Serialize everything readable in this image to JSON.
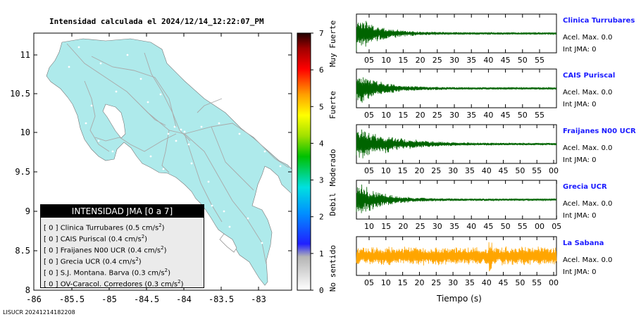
{
  "map": {
    "title": "Intensidad calculada el 2024/12/14_12:22:07_PM",
    "x_ticks": [
      "-86",
      "-85.5",
      "-85",
      "-84.5",
      "-84",
      "-83.5",
      "-83"
    ],
    "y_ticks": [
      "8",
      "8.5",
      "9",
      "9.5",
      "10",
      "10.5",
      "11"
    ],
    "land_color": "#aeeaeb",
    "road_color": "#a9a9a9"
  },
  "colorbar": {
    "ticks": [
      "0",
      "1",
      "2",
      "3",
      "4",
      "5",
      "6",
      "7"
    ],
    "categories": [
      "No sentido",
      "Debil",
      "Moderado",
      "Fuerte",
      "Muy Fuerte"
    ]
  },
  "legend": {
    "header": "INTENSIDAD JMA [0 a 7]",
    "rows": [
      {
        "level": "[ 0 ]",
        "text": "Clinica Turrubares (0.5 cm/s",
        "exp": "2",
        "close": ")"
      },
      {
        "level": "[ 0 ]",
        "text": "CAIS Puriscal (0.4 cm/s",
        "exp": "2",
        "close": ")"
      },
      {
        "level": "[ 0 ]",
        "text": "Fraijanes N00 UCR (0.4 cm/s",
        "exp": "2",
        "close": ")"
      },
      {
        "level": "[ 0 ]",
        "text": "Grecia UCR (0.4 cm/s",
        "exp": "2",
        "close": ")"
      },
      {
        "level": "[ 0 ]",
        "text": "S.J. Montana. Barva (0.3 cm/s",
        "exp": "2",
        "close": ")"
      },
      {
        "level": "[ 0 ]",
        "text": "OV-Caracol. Corredores (0.3 cm/s",
        "exp": "2",
        "close": ")"
      }
    ]
  },
  "footer": "LISUCR 20241214182208",
  "stations": [
    {
      "name": "Clinica Turrubares",
      "acel": "Acel. Max. 0.0",
      "int": "Int JMA: 0",
      "color": "#006400",
      "ticks": [
        "05",
        "10",
        "15",
        "20",
        "25",
        "30",
        "35",
        "40",
        "45",
        "50",
        "55"
      ]
    },
    {
      "name": "CAIS Puriscal",
      "acel": "Acel. Max. 0.0",
      "int": "Int JMA: 0",
      "color": "#006400",
      "ticks": [
        "05",
        "10",
        "15",
        "20",
        "25",
        "30",
        "35",
        "40",
        "45",
        "50",
        "55"
      ]
    },
    {
      "name": "Fraijanes N00 UCR",
      "acel": "Acel. Max. 0.0",
      "int": "Int JMA: 0",
      "color": "#006400",
      "ticks": [
        "05",
        "10",
        "15",
        "20",
        "25",
        "30",
        "35",
        "40",
        "45",
        "50",
        "55",
        "00"
      ]
    },
    {
      "name": "Grecia UCR",
      "acel": "Acel. Max. 0.0",
      "int": "Int JMA: 0",
      "color": "#006400",
      "ticks": [
        "10",
        "15",
        "20",
        "25",
        "30",
        "35",
        "40",
        "45",
        "50",
        "55",
        "00",
        "05"
      ]
    },
    {
      "name": "La Sabana",
      "acel": "Acel. Max. 0.0",
      "int": "Int JMA: 0",
      "color": "#ffa500",
      "ticks": [
        "05",
        "10",
        "15",
        "20",
        "25",
        "30",
        "35",
        "40",
        "45",
        "50",
        "55",
        "00"
      ]
    }
  ],
  "x_axis_label": "Tiempo (s)"
}
